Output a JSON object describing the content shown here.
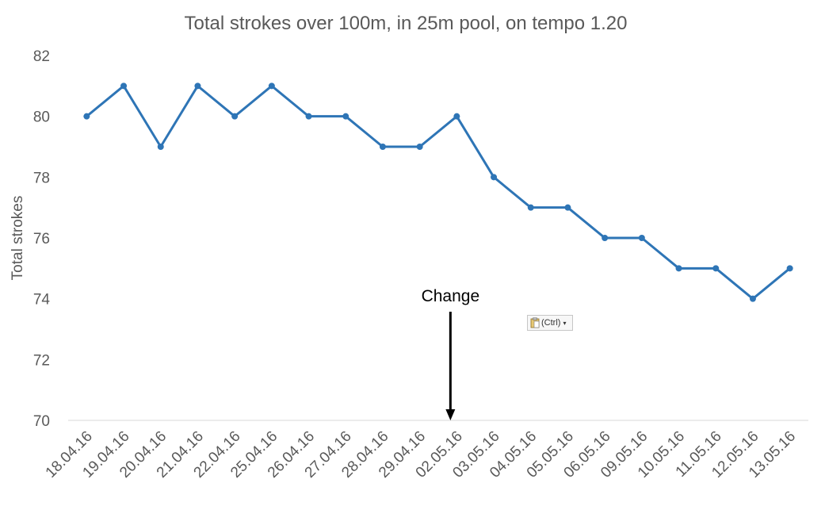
{
  "chart_data": {
    "type": "line",
    "title": "Total strokes over 100m, in 25m pool, on tempo 1.20",
    "xlabel": "",
    "ylabel": "Total strokes",
    "ylim": [
      70,
      82
    ],
    "yticks": [
      70,
      72,
      74,
      76,
      78,
      80,
      82
    ],
    "grid": false,
    "categories": [
      "18.04.16",
      "19.04.16",
      "20.04.16",
      "21.04.16",
      "22.04.16",
      "25.04.16",
      "26.04.16",
      "27.04.16",
      "28.04.16",
      "29.04.16",
      "02.05.16",
      "03.05.16",
      "04.05.16",
      "05.05.16",
      "06.05.16",
      "09.05.16",
      "10.05.16",
      "11.05.16",
      "12.05.16",
      "13.05.16"
    ],
    "series": [
      {
        "values": [
          80,
          81,
          79,
          81,
          80,
          81,
          80,
          80,
          79,
          79,
          80,
          78,
          77,
          77,
          76,
          76,
          75,
          75,
          74,
          75
        ]
      }
    ],
    "line_color": "#2e75b6",
    "annotation": {
      "text": "Change",
      "at_category": "02.05.16"
    }
  },
  "ui": {
    "paste_options_label": "(Ctrl)",
    "paste_options_icon": "clipboard-icon"
  }
}
